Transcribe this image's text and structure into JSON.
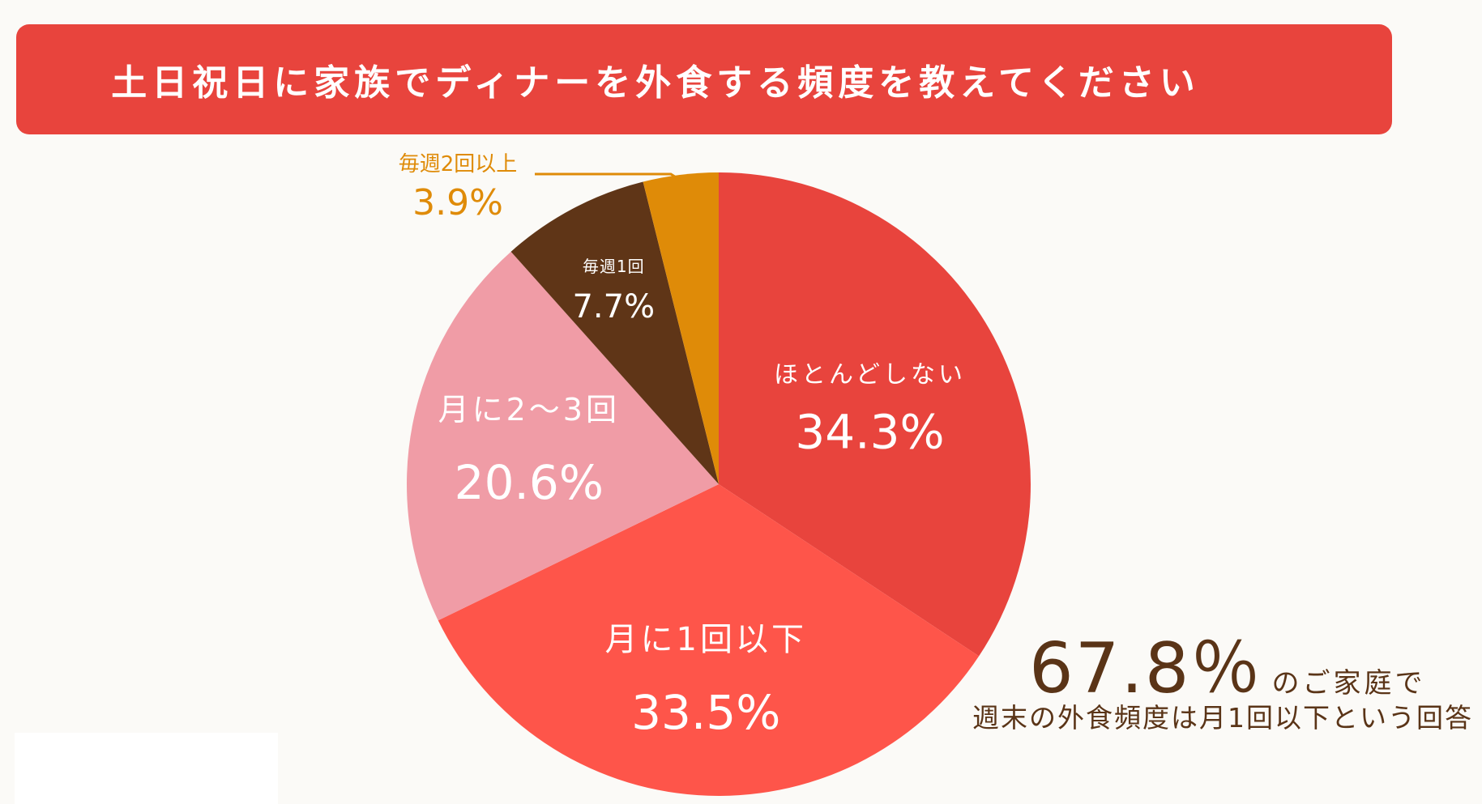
{
  "header": {
    "title": "土日祝日に家族でディナーを外食する頻度を教えてください"
  },
  "chart_data": {
    "type": "pie",
    "title": "土日祝日に家族でディナーを外食する頻度を教えてください",
    "start": "12 o'clock",
    "direction": "clockwise",
    "slices": [
      {
        "name": "ほとんどしない",
        "value": 34.3,
        "label": "34.3%",
        "color": "#e8443d",
        "text_color": "#ffffff"
      },
      {
        "name": "月に1回以下",
        "value": 33.5,
        "label": "33.5%",
        "color": "#fe554a",
        "text_color": "#ffffff"
      },
      {
        "name": "月に2～3回",
        "value": 20.6,
        "label": "20.6%",
        "color": "#f09ca6",
        "text_color": "#ffffff"
      },
      {
        "name": "毎週1回",
        "value": 7.7,
        "label": "7.7%",
        "color": "#5f3517",
        "text_color": "#ffffff"
      },
      {
        "name": "毎週2回以上",
        "value": 3.9,
        "label": "3.9%",
        "color": "#df8b08",
        "text_color": "#df8b08"
      }
    ]
  },
  "summary": {
    "value": "67.8％",
    "tail": "のご家庭で",
    "note": "週末の外食頻度は月1回以下という回答"
  },
  "colors": {
    "banner": "#e8443d",
    "background": "#fbfaf7",
    "summary_text": "#5a3417"
  }
}
